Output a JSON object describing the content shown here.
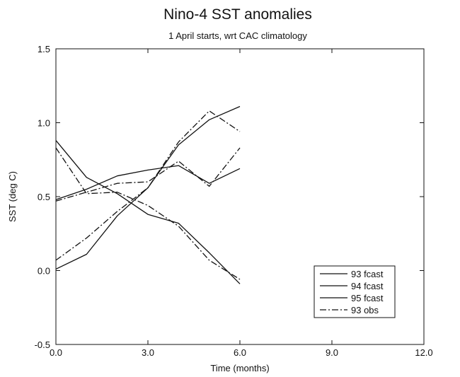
{
  "chart_data": {
    "type": "line",
    "title": "Nino-4 SST anomalies",
    "subtitle": "1 April starts, wrt CAC climatology",
    "xlabel": "Time (months)",
    "ylabel": "SST (deg C)",
    "xlim": [
      0,
      12
    ],
    "ylim": [
      -0.5,
      1.5
    ],
    "xticks": [
      0,
      3,
      6,
      9,
      12
    ],
    "xtick_labels": [
      "0.0",
      "3.0",
      "6.0",
      "9.0",
      "12.0"
    ],
    "yticks": [
      -0.5,
      0,
      0.5,
      1.0,
      1.5
    ],
    "ytick_labels": [
      "-0.5",
      "0.0",
      "0.5",
      "1.0",
      "1.5"
    ],
    "grid": false,
    "legend_position": "bottom-right",
    "series": [
      {
        "name": "93 fcast",
        "style": "solid",
        "x": [
          0,
          1,
          2,
          3,
          4,
          5,
          6
        ],
        "y": [
          0.88,
          0.63,
          0.52,
          0.38,
          0.32,
          0.12,
          -0.09
        ],
        "color": "#111111"
      },
      {
        "name": "94 fcast",
        "style": "solid",
        "x": [
          0,
          1,
          2,
          3,
          4,
          5,
          6
        ],
        "y": [
          0.01,
          0.11,
          0.37,
          0.56,
          0.85,
          1.02,
          1.11
        ],
        "color": "#111111"
      },
      {
        "name": "95 fcast",
        "style": "solid",
        "x": [
          0,
          1,
          2,
          3,
          4,
          5,
          6
        ],
        "y": [
          0.48,
          0.55,
          0.64,
          0.68,
          0.71,
          0.59,
          0.69
        ],
        "color": "#111111"
      },
      {
        "name": "93 obs",
        "style": "dashdot",
        "x": [
          0,
          1,
          2,
          3,
          4,
          5,
          6
        ],
        "y": [
          0.83,
          0.52,
          0.53,
          0.44,
          0.3,
          0.07,
          -0.06
        ],
        "color": "#111111"
      },
      {
        "name": "",
        "style": "dashdot",
        "x": [
          0,
          1,
          2,
          3,
          4,
          5,
          6
        ],
        "y": [
          0.07,
          0.22,
          0.4,
          0.56,
          0.87,
          1.08,
          0.94
        ],
        "color": "#111111"
      },
      {
        "name": "",
        "style": "dashdot",
        "x": [
          0,
          1,
          2,
          3,
          4,
          5,
          6
        ],
        "y": [
          0.47,
          0.53,
          0.59,
          0.6,
          0.74,
          0.57,
          0.83
        ],
        "color": "#111111"
      }
    ]
  }
}
